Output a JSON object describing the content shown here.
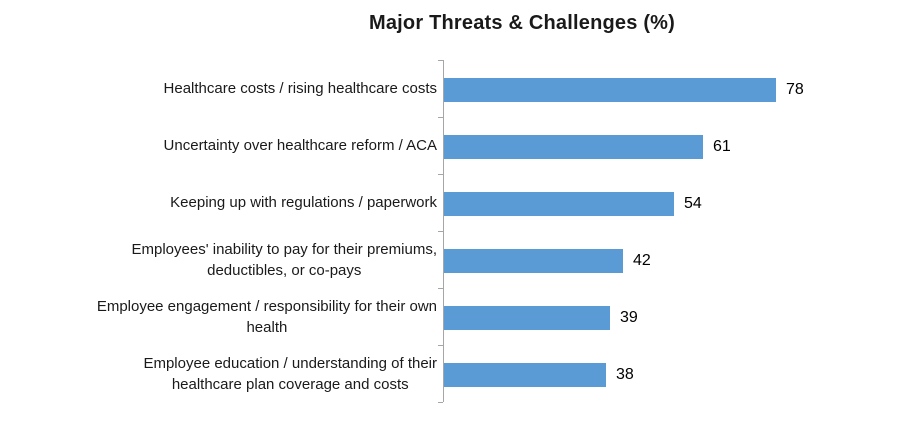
{
  "chart_data": {
    "type": "bar",
    "orientation": "horizontal",
    "title": "Major Threats & Challenges (%)",
    "categories": [
      "Healthcare costs / rising healthcare costs",
      "Uncertainty over healthcare reform / ACA",
      "Keeping up with regulations / paperwork",
      "Employees' inability to pay for their premiums,\ndeductibles, or co-pays",
      "Employee engagement / responsibility for their own\nhealth",
      "Employee education / understanding of their\nhealthcare plan coverage and costs"
    ],
    "values": [
      78,
      61,
      54,
      42,
      39,
      38
    ],
    "data_labels": [
      78,
      61,
      54,
      42,
      39,
      38
    ],
    "xlabel": "",
    "ylabel": "",
    "xlim": [
      0,
      100
    ],
    "grid": false,
    "legend": false,
    "bar_color": "#5b9bd5",
    "axis_color": "#a6a6a6",
    "text_color": "#1a1a1a",
    "background_color": "#ffffff"
  }
}
